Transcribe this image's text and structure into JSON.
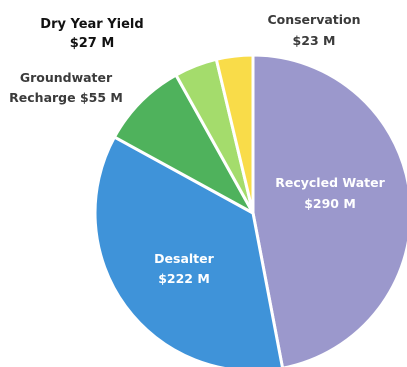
{
  "chart_data": {
    "type": "pie",
    "unit": "$M",
    "slices": [
      {
        "name": "Recycled Water",
        "value": 290,
        "value_label": "$290 M",
        "color": "#9b98cc",
        "label_pos": "inside"
      },
      {
        "name": "Desalter",
        "value": 222,
        "value_label": "$222 M",
        "color": "#3f93d9",
        "label_pos": "inside"
      },
      {
        "name": "Groundwater Recharge",
        "value": 55,
        "value_label": "$55 M",
        "color": "#4fb25c",
        "label_pos": "outside"
      },
      {
        "name": "Dry Year Yield",
        "value": 27,
        "value_label": "$27 M",
        "color": "#a4dc6c",
        "label_pos": "outside"
      },
      {
        "name": "Conservation",
        "value": 23,
        "value_label": "$23 M",
        "color": "#f9dc49",
        "label_pos": "outside"
      }
    ],
    "legend": "none",
    "labels": {
      "recycled_name": "Recycled Water",
      "recycled_value": "$290 M",
      "desalter_name": "Desalter",
      "desalter_value": "$222 M",
      "gw_name_line1": "Groundwater",
      "gw_name_line2": "Recharge $55 M",
      "dry_name": "Dry Year Yield",
      "dry_value": "$27 M",
      "cons_name": "Conservation",
      "cons_value": "$23 M"
    }
  }
}
